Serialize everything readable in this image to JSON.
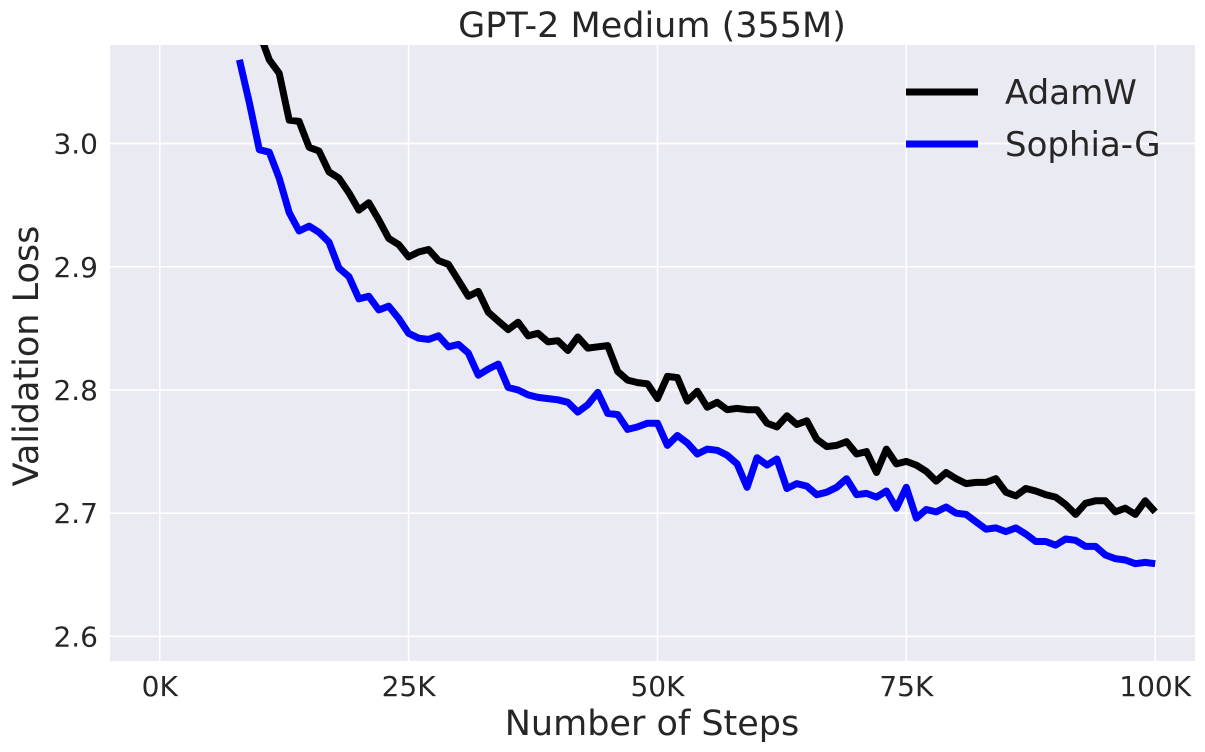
{
  "chart_data": {
    "type": "line",
    "title": "GPT-2 Medium (355M)",
    "xlabel": "Number of Steps",
    "ylabel": "Validation Loss",
    "xlim": [
      -5000,
      104000
    ],
    "ylim": [
      2.58,
      3.08
    ],
    "xticks": [
      0,
      25000,
      50000,
      75000,
      100000
    ],
    "xtick_labels": [
      "0K",
      "25K",
      "50K",
      "75K",
      "100K"
    ],
    "yticks": [
      2.6,
      2.7,
      2.8,
      2.9,
      3.0
    ],
    "ytick_labels": [
      "2.6",
      "2.7",
      "2.8",
      "2.9",
      "3.0"
    ],
    "grid": true,
    "background": "#eaeaf2",
    "legend_position": "top-right",
    "series": [
      {
        "name": "AdamW",
        "color": "#000000",
        "x": [
          10000,
          11000,
          12000,
          13000,
          14000,
          15000,
          16000,
          17000,
          18000,
          19000,
          20000,
          21000,
          22000,
          23000,
          24000,
          25000,
          26000,
          27000,
          28000,
          29000,
          30000,
          31000,
          32000,
          33000,
          34000,
          35000,
          36000,
          37000,
          38000,
          39000,
          40000,
          41000,
          42000,
          43000,
          44000,
          45000,
          46000,
          47000,
          48000,
          49000,
          50000,
          51000,
          52000,
          53000,
          54000,
          55000,
          56000,
          57000,
          58000,
          59000,
          60000,
          61000,
          62000,
          63000,
          64000,
          65000,
          66000,
          67000,
          68000,
          69000,
          70000,
          71000,
          72000,
          73000,
          74000,
          75000,
          76000,
          77000,
          78000,
          79000,
          80000,
          81000,
          82000,
          83000,
          84000,
          85000,
          86000,
          87000,
          88000,
          89000,
          90000,
          91000,
          92000,
          93000,
          94000,
          95000,
          96000,
          97000,
          98000,
          99000,
          100000
        ],
        "y": [
          3.09,
          3.068,
          3.057,
          3.019,
          3.018,
          2.997,
          2.994,
          2.977,
          2.972,
          2.96,
          2.946,
          2.952,
          2.938,
          2.923,
          2.918,
          2.908,
          2.912,
          2.914,
          2.905,
          2.902,
          2.889,
          2.876,
          2.88,
          2.863,
          2.856,
          2.849,
          2.855,
          2.844,
          2.846,
          2.839,
          2.84,
          2.832,
          2.843,
          2.834,
          2.835,
          2.836,
          2.815,
          2.808,
          2.806,
          2.805,
          2.793,
          2.811,
          2.81,
          2.791,
          2.799,
          2.786,
          2.79,
          2.784,
          2.785,
          2.784,
          2.784,
          2.773,
          2.77,
          2.779,
          2.772,
          2.775,
          2.76,
          2.754,
          2.755,
          2.758,
          2.748,
          2.75,
          2.733,
          2.752,
          2.74,
          2.742,
          2.739,
          2.734,
          2.726,
          2.733,
          2.728,
          2.724,
          2.725,
          2.725,
          2.728,
          2.717,
          2.714,
          2.72,
          2.718,
          2.715,
          2.713,
          2.707,
          2.699,
          2.708,
          2.71,
          2.71,
          2.701,
          2.704,
          2.699,
          2.71,
          2.701
        ]
      },
      {
        "name": "Sophia-G",
        "color": "#0000ff",
        "x": [
          8000,
          9000,
          10000,
          11000,
          12000,
          13000,
          14000,
          15000,
          16000,
          17000,
          18000,
          19000,
          20000,
          21000,
          22000,
          23000,
          24000,
          25000,
          26000,
          27000,
          28000,
          29000,
          30000,
          31000,
          32000,
          33000,
          34000,
          35000,
          36000,
          37000,
          38000,
          39000,
          40000,
          41000,
          42000,
          43000,
          44000,
          45000,
          46000,
          47000,
          48000,
          49000,
          50000,
          51000,
          52000,
          53000,
          54000,
          55000,
          56000,
          57000,
          58000,
          59000,
          60000,
          61000,
          62000,
          63000,
          64000,
          65000,
          66000,
          67000,
          68000,
          69000,
          70000,
          71000,
          72000,
          73000,
          74000,
          75000,
          76000,
          77000,
          78000,
          79000,
          80000,
          81000,
          82000,
          83000,
          84000,
          85000,
          86000,
          87000,
          88000,
          89000,
          90000,
          91000,
          92000,
          93000,
          94000,
          95000,
          96000,
          97000,
          98000,
          99000,
          100000
        ],
        "y": [
          3.068,
          3.033,
          2.995,
          2.993,
          2.972,
          2.944,
          2.929,
          2.933,
          2.928,
          2.92,
          2.899,
          2.892,
          2.874,
          2.876,
          2.865,
          2.868,
          2.858,
          2.846,
          2.842,
          2.841,
          2.844,
          2.835,
          2.837,
          2.83,
          2.812,
          2.817,
          2.821,
          2.802,
          2.8,
          2.796,
          2.794,
          2.793,
          2.792,
          2.79,
          2.782,
          2.788,
          2.798,
          2.781,
          2.78,
          2.768,
          2.77,
          2.773,
          2.773,
          2.755,
          2.763,
          2.757,
          2.748,
          2.752,
          2.751,
          2.747,
          2.74,
          2.721,
          2.745,
          2.739,
          2.744,
          2.72,
          2.724,
          2.722,
          2.715,
          2.717,
          2.721,
          2.728,
          2.715,
          2.716,
          2.713,
          2.718,
          2.704,
          2.721,
          2.696,
          2.703,
          2.701,
          2.705,
          2.7,
          2.699,
          2.693,
          2.687,
          2.688,
          2.685,
          2.688,
          2.683,
          2.677,
          2.677,
          2.674,
          2.679,
          2.678,
          2.673,
          2.673,
          2.666,
          2.663,
          2.662,
          2.659,
          2.66,
          2.659
        ]
      }
    ]
  }
}
